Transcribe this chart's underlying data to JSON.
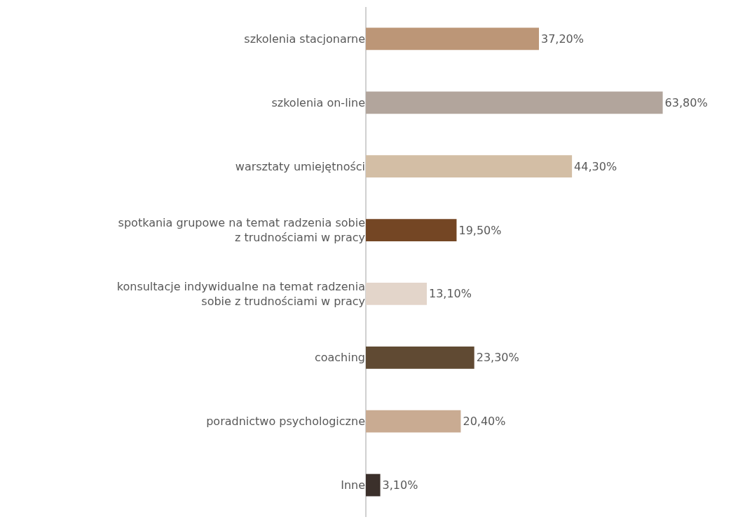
{
  "chart_data": {
    "type": "bar",
    "orientation": "horizontal",
    "categories": [
      "szkolenia stacjonarne",
      "szkolenia on-line",
      "warsztaty umiejętności",
      "spotkania grupowe na temat radzenia sobie\nz trudnościami w pracy",
      "konsultacje indywidualne na temat radzenia\nsobie z trudnościami w pracy",
      "coaching",
      "poradnictwo psychologiczne",
      "Inne"
    ],
    "values": [
      37.2,
      63.8,
      44.3,
      19.5,
      13.1,
      23.3,
      20.4,
      3.1
    ],
    "colors": [
      "#bc9677",
      "#b2a59c",
      "#d3bea5",
      "#744624",
      "#e3d5ca",
      "#604a33",
      "#c9ab92",
      "#3b302b"
    ],
    "value_labels": [
      "37,20%",
      "63,80%",
      "44,30%",
      "19,50%",
      "13,10%",
      "23,30%",
      "20,40%",
      "3,10%"
    ],
    "grid": false,
    "legend": false
  }
}
